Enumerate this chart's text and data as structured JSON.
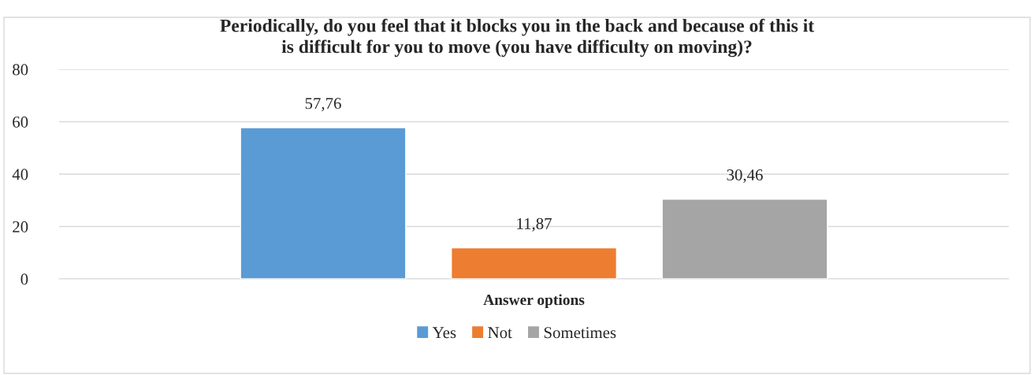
{
  "chart_data": {
    "type": "bar",
    "title": "Periodically, do you feel that it blocks you in the back and because of this it\nis difficult for you to move (you have difficulty on moving)?",
    "categories": [
      "Answer options"
    ],
    "series": [
      {
        "name": "Yes",
        "color": "#5b9bd5",
        "values": [
          57.76
        ],
        "value_labels": [
          "57,76"
        ]
      },
      {
        "name": "Not",
        "color": "#ed7d31",
        "values": [
          11.87
        ],
        "value_labels": [
          "11,87"
        ]
      },
      {
        "name": "Sometimes",
        "color": "#a5a5a5",
        "values": [
          30.46
        ],
        "value_labels": [
          "30,46"
        ]
      }
    ],
    "ylim": [
      0,
      80
    ],
    "yticks": [
      0,
      20,
      40,
      60,
      80
    ],
    "grid": "y",
    "legend": "bottom"
  }
}
